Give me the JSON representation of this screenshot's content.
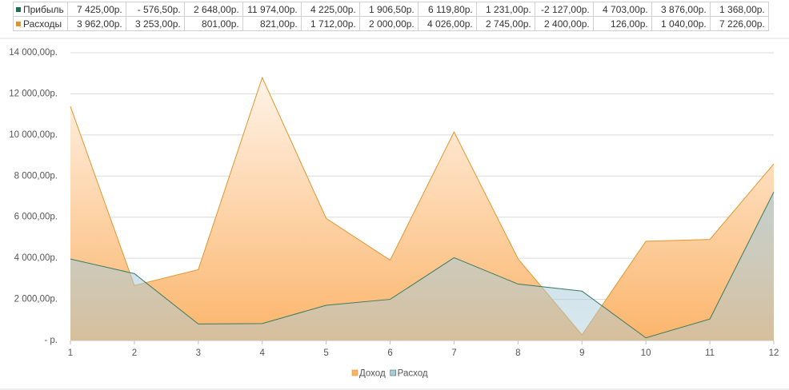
{
  "table": {
    "rows": [
      {
        "label": "Прибыль",
        "color": "#1e6e52",
        "cells": [
          "7 425,00р.",
          "- 576,50р.",
          "2 648,00р.",
          "11 974,00р.",
          "4 225,00р.",
          "1 906,50р.",
          "6 119,80р.",
          "1 231,00р.",
          "-2 127,00р.",
          "4 703,00р.",
          "3 876,00р.",
          "1 368,00р."
        ]
      },
      {
        "label": "Расходы",
        "color": "#e0962f",
        "cells": [
          "3 962,00р.",
          "3 253,00р.",
          "801,00р.",
          "821,00р.",
          "1 712,00р.",
          "2 000,00р.",
          "4 026,00р.",
          "2 745,00р.",
          "2 400,00р.",
          "126,00р.",
          "1 040,00р.",
          "7 226,00р."
        ]
      }
    ]
  },
  "chart_data": {
    "type": "area",
    "x": [
      1,
      2,
      3,
      4,
      5,
      6,
      7,
      8,
      9,
      10,
      11,
      12
    ],
    "xlim": [
      1,
      12
    ],
    "ylim": [
      0,
      14000
    ],
    "yticks": [
      {
        "value": 0,
        "label": "- р."
      },
      {
        "value": 2000,
        "label": "2 000,00р."
      },
      {
        "value": 4000,
        "label": "4 000,00р."
      },
      {
        "value": 6000,
        "label": "6 000,00р."
      },
      {
        "value": 8000,
        "label": "8 000,00р."
      },
      {
        "value": 10000,
        "label": "10 000,00р."
      },
      {
        "value": 12000,
        "label": "12 000,00р."
      },
      {
        "value": 14000,
        "label": "14 000,00р."
      }
    ],
    "grid": true,
    "series": [
      {
        "name": "Доход",
        "color": "#f8b26a",
        "line_color": "#e0962f",
        "values": [
          11387,
          2676.5,
          3449,
          12795,
          5937,
          3906.5,
          10145.8,
          3976,
          273,
          4829,
          4916,
          8594
        ]
      },
      {
        "name": "Расход",
        "color": "#a9cbd9",
        "line_color": "#3a7a5f",
        "values": [
          3962,
          3253,
          801,
          821,
          1712,
          2000,
          4026,
          2745,
          2400,
          126,
          1040,
          7226
        ]
      }
    ]
  }
}
